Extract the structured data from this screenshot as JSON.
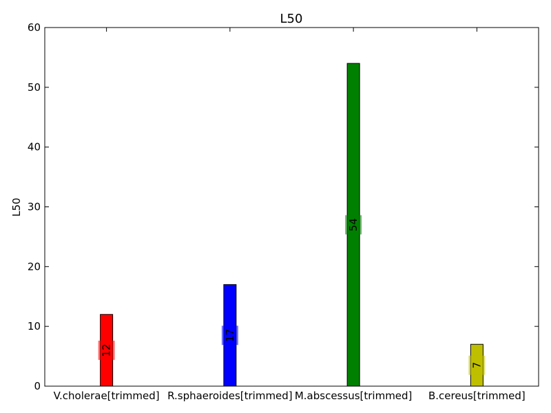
{
  "chart_data": {
    "type": "bar",
    "title": "L50",
    "xlabel": "",
    "ylabel": "L50",
    "categories": [
      "V.cholerae[trimmed]",
      "R.sphaeroides[trimmed]",
      "M.abscessus[trimmed]",
      "B.cereus[trimmed]"
    ],
    "values": [
      12,
      17,
      54,
      7
    ],
    "colors": [
      "#ff0000",
      "#0000ff",
      "#008000",
      "#bfbf00"
    ],
    "data_labels": [
      "12",
      "17",
      "54",
      "7"
    ],
    "ylim": [
      0,
      60
    ],
    "yticks": [
      0,
      10,
      20,
      30,
      40,
      50,
      60
    ],
    "grid": false,
    "legend": "none"
  }
}
